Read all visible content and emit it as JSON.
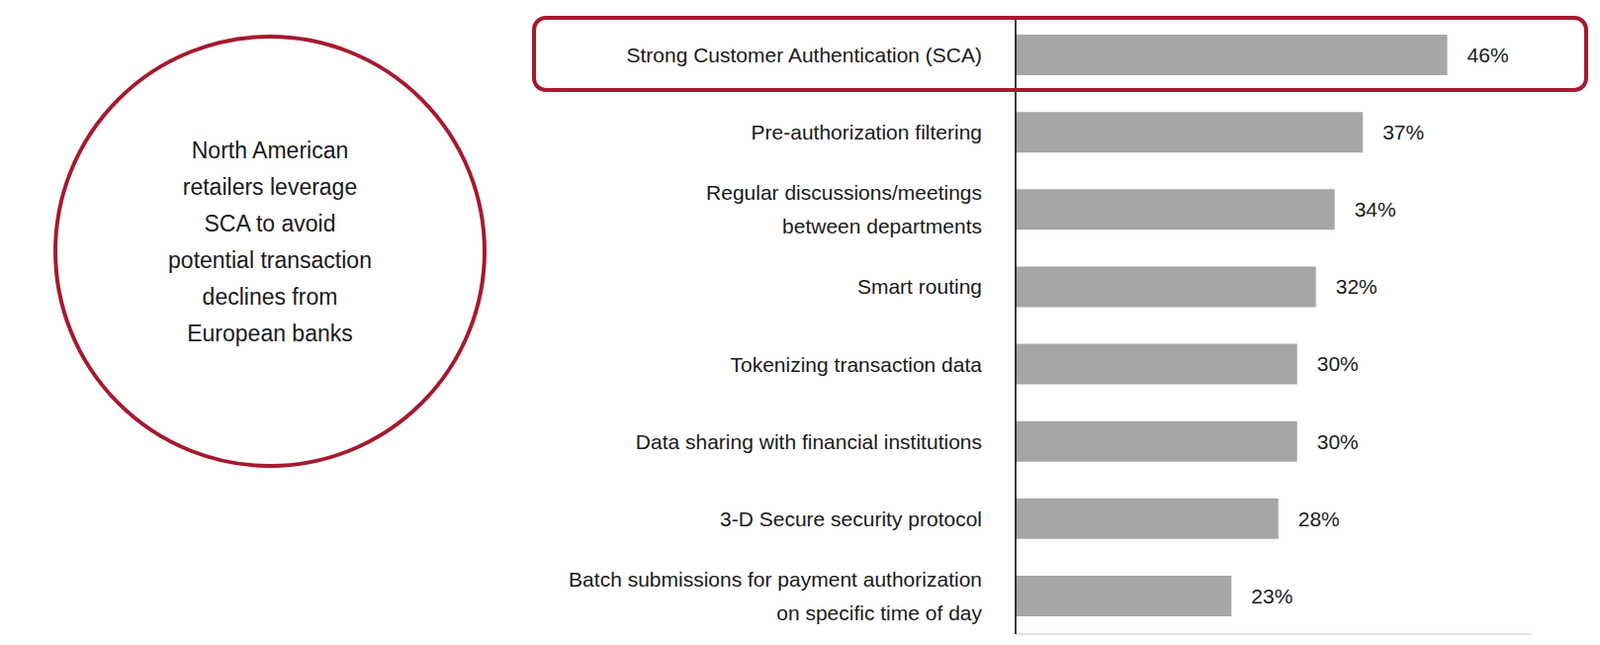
{
  "chart_data": {
    "type": "bar",
    "orientation": "horizontal",
    "categories": [
      "Strong Customer Authentication (SCA)",
      "Pre-authorization filtering",
      "Regular discussions/meetings\nbetween departments",
      "Smart routing",
      "Tokenizing transaction data",
      "Data sharing with financial institutions",
      "3-D Secure security protocol",
      "Batch submissions for payment authorization\non specific time of day"
    ],
    "values": [
      46,
      37,
      34,
      32,
      30,
      30,
      28,
      23
    ],
    "value_labels": [
      "46%",
      "37%",
      "34%",
      "32%",
      "30%",
      "30%",
      "28%",
      "23%"
    ],
    "color": "#a6a6a6",
    "xlim": [
      0,
      55
    ],
    "data_labels": true,
    "tick_labels": "y",
    "grid": false,
    "annotation": "North American\nretailers leverage\nSCA to avoid\npotential transaction\ndeclines from\nEuropean banks"
  }
}
